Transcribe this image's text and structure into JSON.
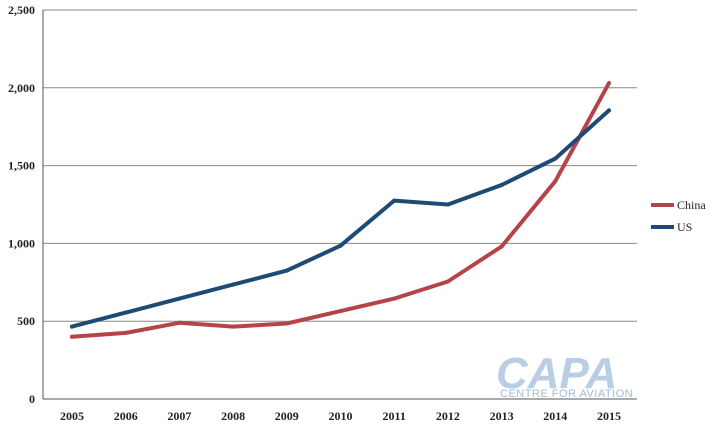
{
  "chart_data": {
    "type": "line",
    "categories": [
      "2005",
      "2006",
      "2007",
      "2008",
      "2009",
      "2010",
      "2011",
      "2012",
      "2013",
      "2014",
      "2015"
    ],
    "series": [
      {
        "name": "China",
        "color": "#b5444a",
        "values": [
          400,
          425,
          490,
          465,
          485,
          565,
          645,
          755,
          980,
          1400,
          2030
        ]
      },
      {
        "name": "US",
        "color": "#1e4b73",
        "values": [
          465,
          555,
          645,
          735,
          825,
          985,
          1275,
          1250,
          1375,
          1545,
          1855
        ]
      }
    ],
    "ylim": [
      0,
      2500
    ],
    "yticks": [
      0,
      500,
      1000,
      1500,
      2000,
      2500
    ],
    "ytick_labels": [
      "0",
      "500",
      "1,000",
      "1,500",
      "2,000",
      "2,500"
    ],
    "grid": true,
    "legend_position": "right",
    "title": "",
    "xlabel": "",
    "ylabel": ""
  },
  "watermark": {
    "brand": "CAPA",
    "tagline": "CENTRE FOR AVIATION"
  }
}
